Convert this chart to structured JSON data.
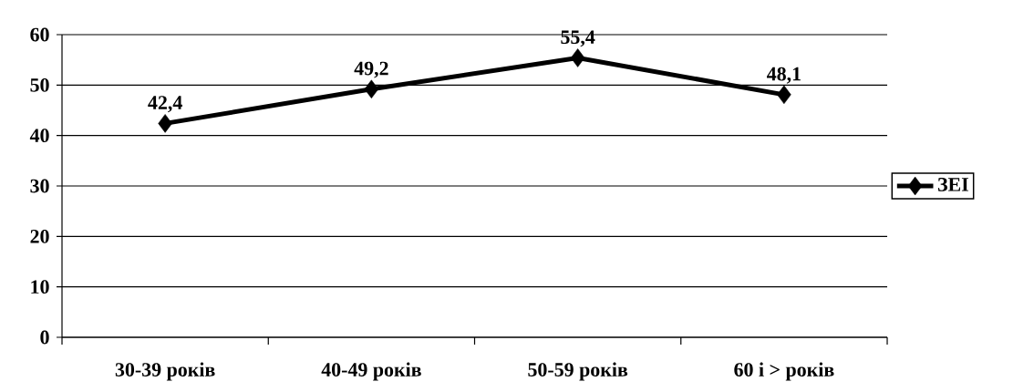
{
  "chart_data": {
    "type": "line",
    "categories": [
      "30-39 років",
      "40-49 років",
      "50-59 років",
      "60 і > років"
    ],
    "series": [
      {
        "name": "ЗЕІ",
        "color": "#000000",
        "values": [
          42.4,
          49.2,
          55.4,
          48.1
        ],
        "value_labels": [
          "42,4",
          "49,2",
          "55,4",
          "48,1"
        ]
      }
    ],
    "ylim": [
      0,
      60
    ],
    "yticks": [
      0,
      10,
      20,
      30,
      40,
      50,
      60
    ],
    "grid": "y",
    "legend": "right",
    "marker": "diamond",
    "line_style": "solid"
  }
}
